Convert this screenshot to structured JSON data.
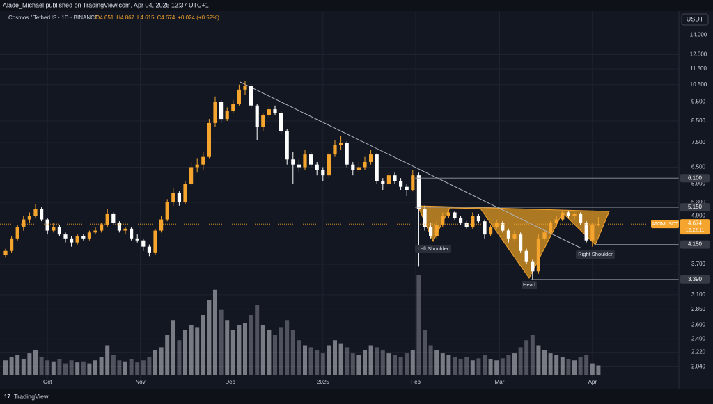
{
  "chart_data": {
    "type": "candlestick",
    "author_line": "Alade_Michael published on TradingView.com, Apr 04, 2025 12:37 UTC+1",
    "title": "Cosmos / TetherUS · 1D · BINANCE",
    "ohlc": [
      "O4.651",
      "H4.867",
      "L4.615",
      "C4.674",
      "+0.024 (+0.52%)"
    ],
    "currency": "USDT",
    "log_scale": true,
    "grid": true,
    "up_color": "#f5a42d",
    "down_color": "#ffffff",
    "volume_color": "#9b9ea6",
    "ylim": [
      1.94,
      15.7
    ],
    "yticks": [
      {
        "value": 14,
        "label": "14.000"
      },
      {
        "value": 12.5,
        "label": "12.500"
      },
      {
        "value": 11.5,
        "label": "11.500"
      },
      {
        "value": 10.5,
        "label": "10.500"
      },
      {
        "value": 9.5,
        "label": "9.500"
      },
      {
        "value": 8.5,
        "label": "8.500"
      },
      {
        "value": 7.5,
        "label": "7.500"
      },
      {
        "value": 6.5,
        "label": "6.500"
      },
      {
        "value": 5.9,
        "label": "5.900"
      },
      {
        "value": 5.3,
        "label": "5.300"
      },
      {
        "value": 4.9,
        "label": "4.900"
      },
      {
        "value": 3.7,
        "label": "3.700"
      },
      {
        "value": 3.1,
        "label": "3.100"
      },
      {
        "value": 2.85,
        "label": "2.850"
      },
      {
        "value": 2.6,
        "label": "2.600"
      },
      {
        "value": 2.4,
        "label": "2.400"
      },
      {
        "value": 2.22,
        "label": "2.220"
      },
      {
        "value": 2.04,
        "label": "2.040"
      }
    ],
    "xticks": [
      {
        "value": 7,
        "label": "Oct"
      },
      {
        "value": 22.5,
        "label": "Nov"
      },
      {
        "value": 37.5,
        "label": "Dec"
      },
      {
        "value": 53,
        "label": "2025"
      },
      {
        "value": 68.5,
        "label": "Feb"
      },
      {
        "value": 82.5,
        "label": "Mar"
      },
      {
        "value": 98,
        "label": "Apr"
      }
    ],
    "candles": [
      [
        3.9,
        4.05,
        3.85,
        4.0
      ],
      [
        4.0,
        4.35,
        3.95,
        4.3
      ],
      [
        4.3,
        4.65,
        4.25,
        4.6
      ],
      [
        4.6,
        4.9,
        4.5,
        4.8
      ],
      [
        4.8,
        5.0,
        4.7,
        4.9
      ],
      [
        4.9,
        5.25,
        4.85,
        5.1
      ],
      [
        5.1,
        5.15,
        4.75,
        4.8
      ],
      [
        4.8,
        4.85,
        4.4,
        4.5
      ],
      [
        4.5,
        4.7,
        4.45,
        4.6
      ],
      [
        4.6,
        4.65,
        4.35,
        4.4
      ],
      [
        4.4,
        4.45,
        4.2,
        4.3
      ],
      [
        4.3,
        4.35,
        4.1,
        4.2
      ],
      [
        4.2,
        4.4,
        4.15,
        4.35
      ],
      [
        4.35,
        4.4,
        4.25,
        4.3
      ],
      [
        4.3,
        4.5,
        4.25,
        4.45
      ],
      [
        4.45,
        4.6,
        4.4,
        4.5
      ],
      [
        4.5,
        4.7,
        4.45,
        4.65
      ],
      [
        4.65,
        5.1,
        4.6,
        4.95
      ],
      [
        4.95,
        5.0,
        4.65,
        4.7
      ],
      [
        4.7,
        4.75,
        4.45,
        4.5
      ],
      [
        4.5,
        4.6,
        4.4,
        4.55
      ],
      [
        4.55,
        4.6,
        4.25,
        4.3
      ],
      [
        4.3,
        4.4,
        4.2,
        4.25
      ],
      [
        4.25,
        4.3,
        4.0,
        4.1
      ],
      [
        4.1,
        4.15,
        3.88,
        3.95
      ],
      [
        3.95,
        4.55,
        3.9,
        4.5
      ],
      [
        4.5,
        4.9,
        4.45,
        4.8
      ],
      [
        4.8,
        5.4,
        4.75,
        5.3
      ],
      [
        5.3,
        5.75,
        5.2,
        5.6
      ],
      [
        5.6,
        5.65,
        5.2,
        5.3
      ],
      [
        5.3,
        6.0,
        5.25,
        5.9
      ],
      [
        5.9,
        6.7,
        5.85,
        6.5
      ],
      [
        6.5,
        6.85,
        6.3,
        6.6
      ],
      [
        6.6,
        7.1,
        6.4,
        6.9
      ],
      [
        6.9,
        8.6,
        6.85,
        8.4
      ],
      [
        8.4,
        9.8,
        8.2,
        9.5
      ],
      [
        9.5,
        9.6,
        8.4,
        8.6
      ],
      [
        8.6,
        9.2,
        8.5,
        9.0
      ],
      [
        9.0,
        9.6,
        8.9,
        9.4
      ],
      [
        9.4,
        10.5,
        9.3,
        10.2
      ],
      [
        10.2,
        10.7,
        9.9,
        10.4
      ],
      [
        10.4,
        10.5,
        9.1,
        9.3
      ],
      [
        9.3,
        9.4,
        7.6,
        8.2
      ],
      [
        8.2,
        8.9,
        8.0,
        8.8
      ],
      [
        8.8,
        9.3,
        8.7,
        9.1
      ],
      [
        9.1,
        9.3,
        8.8,
        8.9
      ],
      [
        8.9,
        9.0,
        7.9,
        8.0
      ],
      [
        8.0,
        8.1,
        6.6,
        6.8
      ],
      [
        6.8,
        7.1,
        5.9,
        6.6
      ],
      [
        6.6,
        6.8,
        6.3,
        6.5
      ],
      [
        6.5,
        7.2,
        6.4,
        7.0
      ],
      [
        7.0,
        7.1,
        6.5,
        6.6
      ],
      [
        6.6,
        6.7,
        6.2,
        6.4
      ],
      [
        6.4,
        6.5,
        6.0,
        6.2
      ],
      [
        6.2,
        7.1,
        6.1,
        7.0
      ],
      [
        7.0,
        7.6,
        6.9,
        7.4
      ],
      [
        7.4,
        7.8,
        7.2,
        7.5
      ],
      [
        7.5,
        7.55,
        6.5,
        6.6
      ],
      [
        6.6,
        6.7,
        6.2,
        6.4
      ],
      [
        6.4,
        6.7,
        6.3,
        6.5
      ],
      [
        6.5,
        6.9,
        6.4,
        6.7
      ],
      [
        6.7,
        7.2,
        6.6,
        7.0
      ],
      [
        7.0,
        7.05,
        5.9,
        6.0
      ],
      [
        6.0,
        6.1,
        5.7,
        5.9
      ],
      [
        5.9,
        6.3,
        5.85,
        6.2
      ],
      [
        6.2,
        6.3,
        5.9,
        6.0
      ],
      [
        6.0,
        6.1,
        5.7,
        5.8
      ],
      [
        5.8,
        5.9,
        5.5,
        5.7
      ],
      [
        5.7,
        6.4,
        5.65,
        6.2
      ],
      [
        6.2,
        6.3,
        3.65,
        5.1
      ],
      [
        5.1,
        5.2,
        4.5,
        4.6
      ],
      [
        4.6,
        4.7,
        4.3,
        4.35
      ],
      [
        4.35,
        4.75,
        4.3,
        4.65
      ],
      [
        4.65,
        5.0,
        4.6,
        4.9
      ],
      [
        4.9,
        5.1,
        4.85,
        5.0
      ],
      [
        5.0,
        5.05,
        4.8,
        4.85
      ],
      [
        4.85,
        4.9,
        4.65,
        4.7
      ],
      [
        4.7,
        4.75,
        4.55,
        4.6
      ],
      [
        4.6,
        5.0,
        4.55,
        4.9
      ],
      [
        4.9,
        4.95,
        4.7,
        4.75
      ],
      [
        4.75,
        4.8,
        4.3,
        4.4
      ],
      [
        4.4,
        4.65,
        4.35,
        4.6
      ],
      [
        4.6,
        4.8,
        4.55,
        4.7
      ],
      [
        4.7,
        4.75,
        4.45,
        4.5
      ],
      [
        4.5,
        4.55,
        4.2,
        4.3
      ],
      [
        4.3,
        4.5,
        4.25,
        4.4
      ],
      [
        4.4,
        4.45,
        3.95,
        4.0
      ],
      [
        4.0,
        4.05,
        3.7,
        3.75
      ],
      [
        3.75,
        3.8,
        3.39,
        3.55
      ],
      [
        3.55,
        4.4,
        3.5,
        4.3
      ],
      [
        4.3,
        4.5,
        4.25,
        4.45
      ],
      [
        4.45,
        4.75,
        4.4,
        4.7
      ],
      [
        4.7,
        4.9,
        4.6,
        4.8
      ],
      [
        4.8,
        5.05,
        4.75,
        5.0
      ],
      [
        5.0,
        5.05,
        4.85,
        4.9
      ],
      [
        4.9,
        5.0,
        4.8,
        4.95
      ],
      [
        4.95,
        5.0,
        4.65,
        4.7
      ],
      [
        4.7,
        4.75,
        4.2,
        4.25
      ],
      [
        4.25,
        4.7,
        4.1,
        4.65
      ],
      [
        4.651,
        4.867,
        4.615,
        4.674
      ]
    ],
    "volume": [
      15,
      18,
      20,
      16,
      22,
      25,
      18,
      15,
      14,
      16,
      12,
      15,
      13,
      14,
      12,
      15,
      18,
      30,
      20,
      15,
      14,
      16,
      13,
      15,
      18,
      25,
      28,
      40,
      55,
      35,
      45,
      50,
      48,
      60,
      75,
      85,
      65,
      55,
      45,
      50,
      52,
      60,
      70,
      50,
      45,
      40,
      48,
      55,
      45,
      35,
      30,
      28,
      25,
      22,
      30,
      35,
      32,
      28,
      22,
      20,
      25,
      30,
      28,
      25,
      22,
      20,
      18,
      22,
      25,
      100,
      45,
      30,
      25,
      22,
      20,
      18,
      16,
      18,
      15,
      17,
      20,
      16,
      15,
      17,
      20,
      22,
      28,
      35,
      40,
      30,
      25,
      22,
      20,
      18,
      16,
      15,
      18,
      20,
      12,
      10
    ],
    "vlim": [
      0,
      100
    ],
    "levels": [
      {
        "value": 6.1,
        "label": "6.100"
      },
      {
        "value": 5.15,
        "label": "5.150"
      },
      {
        "value": 4.15,
        "label": "4.150"
      },
      {
        "value": 3.39,
        "label": "3.390"
      }
    ],
    "last_price": {
      "value": 4.674,
      "label": "4.674"
    },
    "symbol": "ATOMUSDT",
    "countdown": "12:22:11",
    "annotations": [
      "Left Shoulder",
      "Head",
      "Right Shoulder"
    ],
    "brand": "TradingView"
  }
}
